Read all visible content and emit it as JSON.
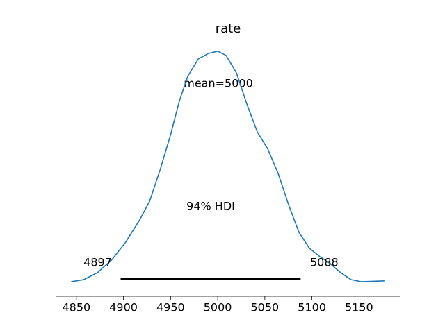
{
  "chart_data": {
    "type": "line",
    "title": "rate",
    "x": [
      4844.5,
      4857.8,
      4872.5,
      4887.3,
      4902.0,
      4916.7,
      4927.8,
      4938.8,
      4949.9,
      4959.5,
      4968.3,
      4979.4,
      4990.4,
      5000,
      5008.8,
      5019.9,
      5030.9,
      5042.0,
      5053.1,
      5064.1,
      5075.2,
      5086.2,
      5097.3,
      5108.3,
      5119.4,
      5130.4,
      5141.5,
      5152.5,
      5176.9
    ],
    "y": [
      2e-05,
      9e-05,
      0.00033,
      0.00075,
      0.00134,
      0.00208,
      0.00274,
      0.00379,
      0.00497,
      0.00614,
      0.00696,
      0.00754,
      0.00773,
      0.0078,
      0.00766,
      0.00707,
      0.00602,
      0.00508,
      0.0045,
      0.00368,
      0.00262,
      0.00169,
      0.00115,
      0.00087,
      0.00063,
      0.00033,
      9e-05,
      2e-05,
      5e-05
    ],
    "color": "#1f77b4",
    "xlim": [
      4828,
      5194
    ],
    "xticks": [
      4850,
      4900,
      4950,
      5000,
      5050,
      5100,
      5150
    ],
    "ylim": [
      -0.00047,
      0.00818
    ],
    "mean_label": "mean=5000",
    "hdi_label": "94% HDI",
    "hdi": [
      4897,
      5088
    ]
  }
}
